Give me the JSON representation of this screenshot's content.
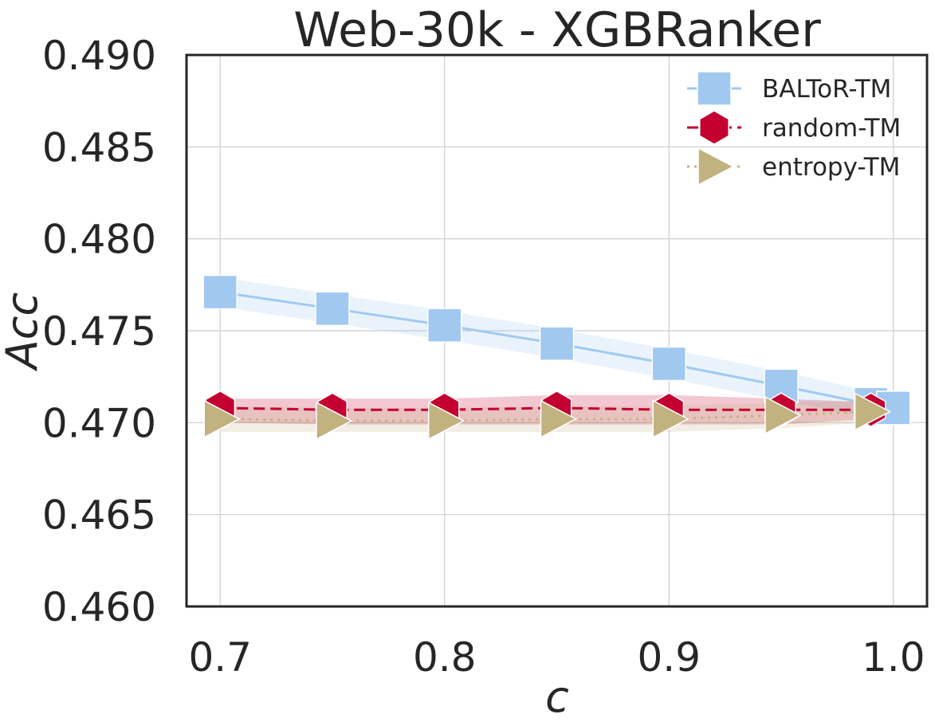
{
  "chart_data": {
    "type": "line",
    "title": "Web-30k - XGBRanker",
    "xlabel": "c",
    "ylabel": "Acc",
    "xlim": [
      0.685,
      1.015
    ],
    "ylim": [
      0.46,
      0.49
    ],
    "xticks": [
      0.7,
      0.8,
      0.9,
      1.0
    ],
    "xtick_labels": [
      "0.7",
      "0.8",
      "0.9",
      "1.0"
    ],
    "yticks": [
      0.46,
      0.465,
      0.47,
      0.475,
      0.48,
      0.485,
      0.49
    ],
    "ytick_labels": [
      "0.460",
      "0.465",
      "0.470",
      "0.475",
      "0.480",
      "0.485",
      "0.490"
    ],
    "grid": true,
    "legend_position": "top-right",
    "x": [
      0.7,
      0.75,
      0.8,
      0.85,
      0.9,
      0.95,
      0.99
    ],
    "series": [
      {
        "name": "BALToR-TM",
        "color": "#a1c9f0",
        "linestyle": "solid",
        "marker": "square",
        "x": [
          0.7,
          0.75,
          0.8,
          0.85,
          0.9,
          0.95,
          0.99,
          1.0
        ],
        "values": [
          0.4771,
          0.4762,
          0.4753,
          0.4743,
          0.4732,
          0.472,
          0.471,
          0.4708
        ],
        "band_low": [
          0.4763,
          0.4754,
          0.4745,
          0.4735,
          0.4724,
          0.4712,
          0.4703,
          0.4701
        ],
        "band_high": [
          0.4779,
          0.477,
          0.4761,
          0.4751,
          0.474,
          0.4728,
          0.4717,
          0.4715
        ]
      },
      {
        "name": "random-TM",
        "color": "#c3002f",
        "linestyle": "dashed",
        "marker": "hexagon",
        "x": [
          0.7,
          0.75,
          0.8,
          0.85,
          0.9,
          0.95,
          0.99
        ],
        "values": [
          0.4708,
          0.4707,
          0.4707,
          0.4708,
          0.4707,
          0.4707,
          0.4707
        ],
        "band_low": [
          0.47,
          0.4699,
          0.4699,
          0.4699,
          0.4699,
          0.4699,
          0.4702
        ],
        "band_high": [
          0.4713,
          0.4713,
          0.4713,
          0.4715,
          0.4715,
          0.4713,
          0.4711
        ]
      },
      {
        "name": "entropy-TM",
        "color": "#c2b280",
        "linestyle": "dotted",
        "marker": "triangle-right",
        "x": [
          0.7,
          0.75,
          0.8,
          0.85,
          0.9,
          0.95,
          0.99
        ],
        "values": [
          0.4702,
          0.4701,
          0.4701,
          0.4702,
          0.4702,
          0.4704,
          0.4706
        ],
        "band_low": [
          0.4695,
          0.4695,
          0.4695,
          0.4695,
          0.4695,
          0.4697,
          0.47
        ],
        "band_high": [
          0.4709,
          0.4708,
          0.4708,
          0.4709,
          0.4709,
          0.4711,
          0.4712
        ]
      }
    ]
  }
}
